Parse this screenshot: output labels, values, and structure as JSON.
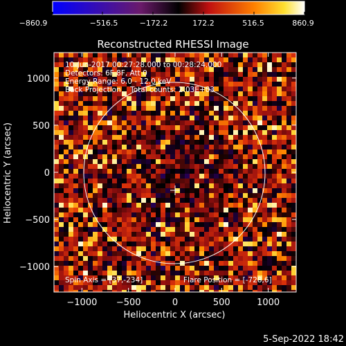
{
  "colorbar": {
    "ticks": [
      "−860.9",
      "−516.5",
      "−172.2",
      "172.2",
      "516.5",
      "860.9"
    ],
    "range": [
      -860.9,
      860.9
    ]
  },
  "chart_data": {
    "type": "heatmap",
    "title": "Reconstructed RHESSI Image",
    "xlabel": "Heliocentric X (arcsec)",
    "ylabel": "Heliocentric Y (arcsec)",
    "xlim": [
      -1300,
      1300
    ],
    "ylim": [
      -1270,
      1270
    ],
    "xticks": [
      -1000,
      -500,
      0,
      500,
      1000
    ],
    "yticks": [
      1000,
      500,
      0,
      -500,
      -1000
    ],
    "xtick_labels": [
      "−1000",
      "−500",
      "0",
      "500",
      "1000"
    ],
    "ytick_labels": [
      "1000",
      "500",
      "0",
      "−500",
      "−1000"
    ],
    "solar_limb_radius_arcsec": 970,
    "disk_center_marker": [
      0,
      0
    ],
    "annotations": {
      "time_range": "10-Jun-2017 00:27:28.000 to 00:28:24.000",
      "detectors": "Detectors: 6F 8F, Att 0",
      "energy": "Energy Range: 6.0 - 12.0 keV",
      "method": "Back Projection    Total counts: 2.03E+03",
      "spin_axis": "Spin Axis = [37,-234]",
      "flare_position": "Flare Position = [-728,6]"
    },
    "colormap": "hot (blue→black→red→yellow→white)",
    "value_range": [
      -860.9,
      860.9
    ]
  },
  "footer": {
    "timestamp": "5-Sep-2022 18:42"
  }
}
